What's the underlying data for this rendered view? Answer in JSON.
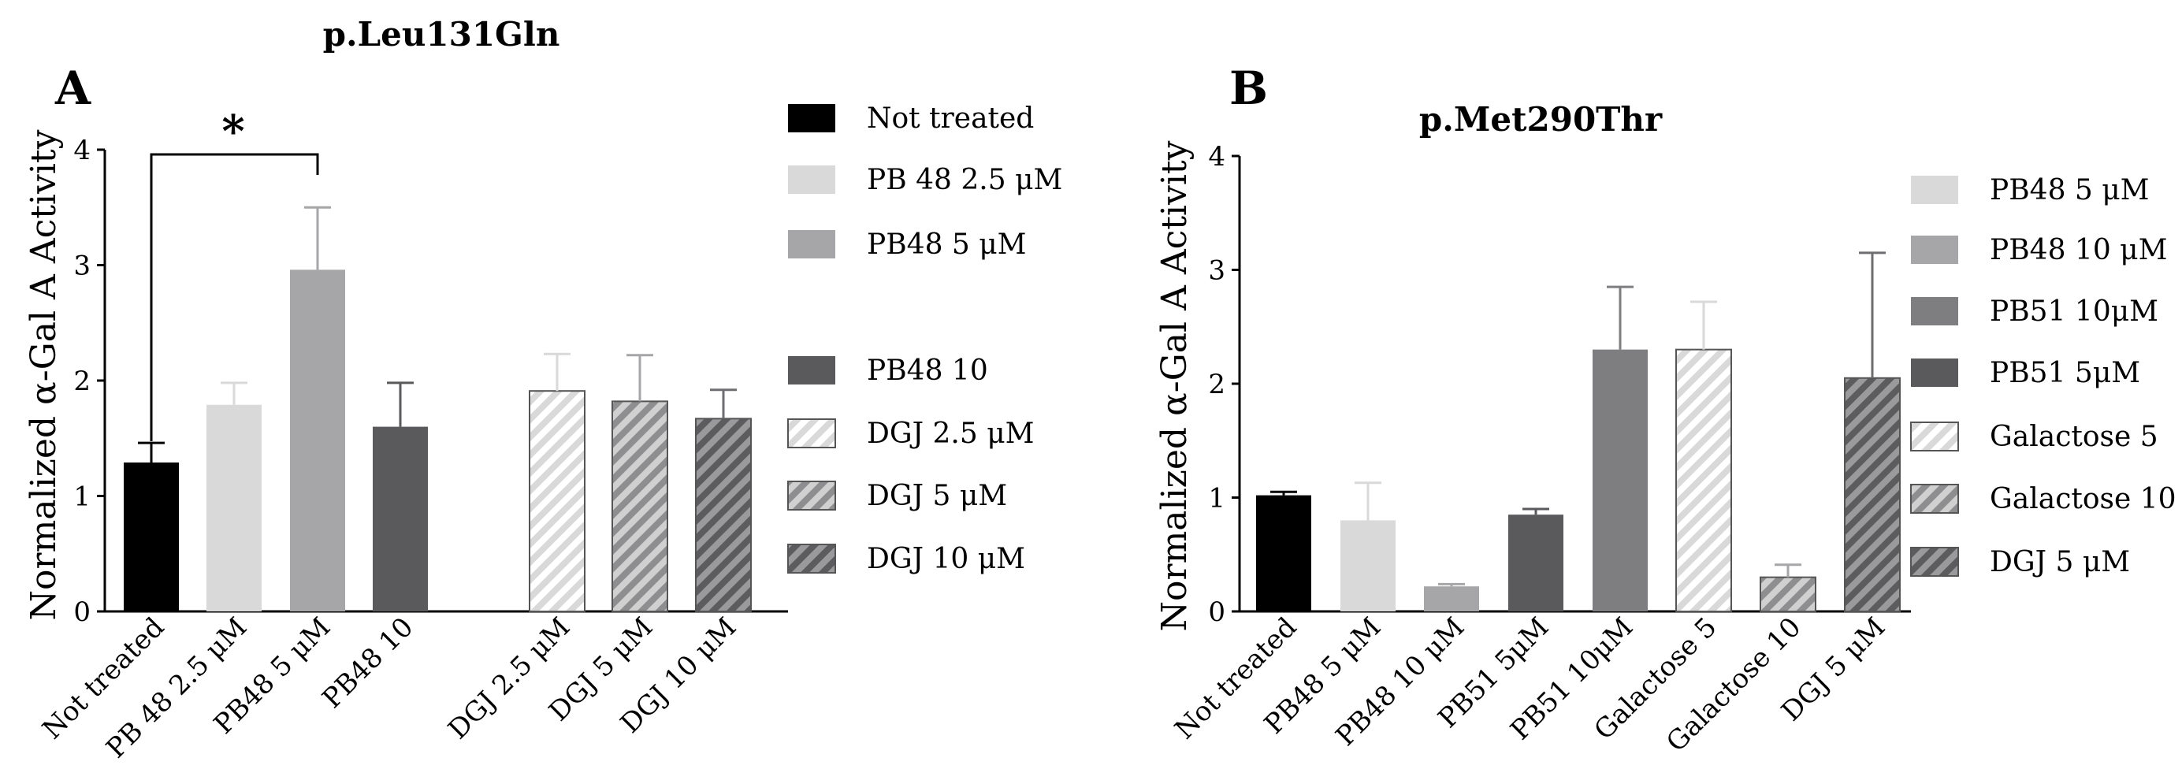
{
  "chart_data": [
    {
      "panel": "A",
      "type": "bar",
      "title": "p.Leu131Gln",
      "ylabel": "Normalized α-Gal A Activity",
      "xlabel": "",
      "ylim": [
        0,
        4
      ],
      "yticks": [
        "0",
        "1",
        "2",
        "3",
        "4"
      ],
      "grid": false,
      "legend_position": "right",
      "categories": [
        "Not treated",
        "PB 48 2.5 μM",
        "PB48 5 μM",
        "PB48 10",
        "DGJ 2.5 μM",
        "DGJ 5 μM",
        "DGJ 10 μM"
      ],
      "values": [
        1.29,
        1.79,
        2.96,
        1.6,
        1.91,
        1.82,
        1.67
      ],
      "errors": [
        0.17,
        0.19,
        0.54,
        0.38,
        0.32,
        0.4,
        0.25
      ],
      "colors": [
        "#000000",
        "#d9d9d9",
        "#a6a6a8",
        "#5a5a5c",
        "#d9d9d9",
        "#a6a6a8",
        "#6e6e70"
      ],
      "hatched": [
        false,
        false,
        false,
        false,
        true,
        true,
        true
      ],
      "legend": [
        "Not treated",
        "PB 48 2.5 μM",
        "PB48 5 μM",
        "PB48 10",
        "DGJ 2.5 μM",
        "DGJ 5 μM",
        "DGJ 10 μM"
      ],
      "annotation": {
        "text": "*",
        "from": "Not treated",
        "to": "PB48 5 μM"
      }
    },
    {
      "panel": "B",
      "type": "bar",
      "title": "p.Met290Thr",
      "ylabel": "Normalized α-Gal A Activity",
      "xlabel": "",
      "ylim": [
        0,
        4
      ],
      "yticks": [
        "0",
        "1",
        "2",
        "3",
        "4"
      ],
      "grid": false,
      "legend_position": "right",
      "categories": [
        "Not treated",
        "PB48 5 μM",
        "PB48 10 μM",
        "PB51 5μM",
        "PB51 10μM",
        "Galactose 5",
        "Galactose 10",
        "DGJ 5 μM"
      ],
      "values": [
        1.02,
        0.8,
        0.22,
        0.85,
        2.3,
        2.3,
        0.3,
        2.05
      ],
      "errors": [
        0.03,
        0.33,
        0.02,
        0.05,
        0.55,
        0.42,
        0.11,
        1.1
      ],
      "colors": [
        "#000000",
        "#d9d9d9",
        "#a6a6a8",
        "#5a5a5c",
        "#7e7e80",
        "#d9d9d9",
        "#a6a6a8",
        "#6e6e70"
      ],
      "hatched": [
        false,
        false,
        false,
        false,
        false,
        true,
        true,
        true
      ],
      "legend": [
        "PB48 5 μM",
        "PB48 10 μM",
        "PB51 10μM",
        "PB51 5μM",
        "Galactose 5",
        "Galactose 10",
        "DGJ 5 μM"
      ],
      "legend_colors": [
        "#d9d9d9",
        "#a6a6a8",
        "#7e7e80",
        "#5a5a5c",
        "#d9d9d9",
        "#a6a6a8",
        "#6e6e70"
      ],
      "legend_hatched": [
        false,
        false,
        false,
        false,
        true,
        true,
        true
      ]
    }
  ]
}
